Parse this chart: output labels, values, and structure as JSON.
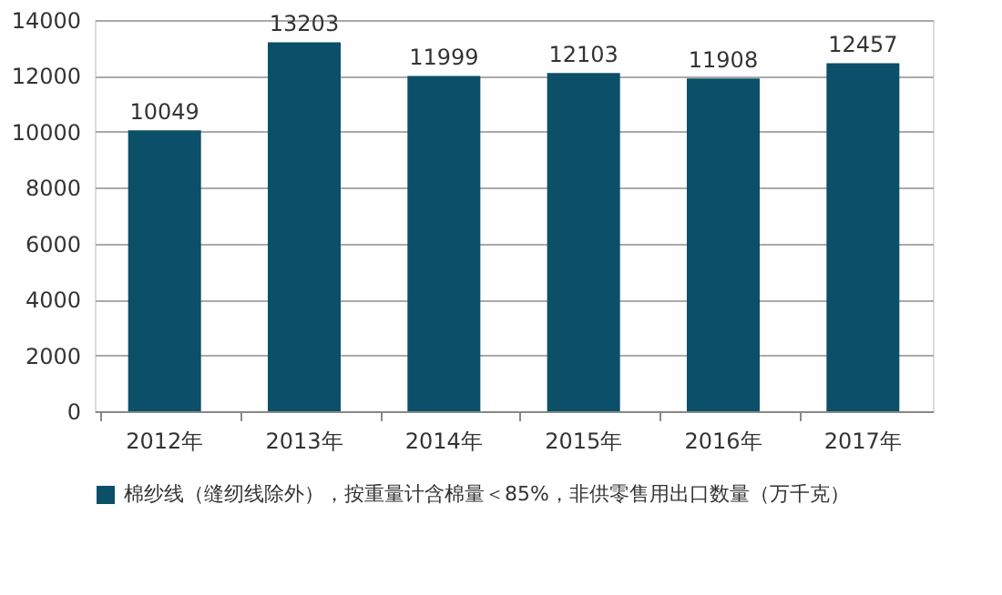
{
  "chart_data": {
    "type": "bar",
    "categories": [
      "2012年",
      "2013年",
      "2014年",
      "2015年",
      "2016年",
      "2017年"
    ],
    "series": [
      {
        "name": "棉纱线（缝纫线除外），按重量计含棉量＜85%，非供零售用出口数量（万千克）",
        "color": "#0b4f68",
        "values": [
          10049,
          13203,
          11999,
          12103,
          11908,
          12457
        ]
      }
    ],
    "ylim": [
      0,
      14000
    ],
    "yticks": [
      0,
      2000,
      4000,
      6000,
      8000,
      10000,
      12000,
      14000
    ],
    "grid": "y",
    "legend": "bottom",
    "data_labels": true
  }
}
